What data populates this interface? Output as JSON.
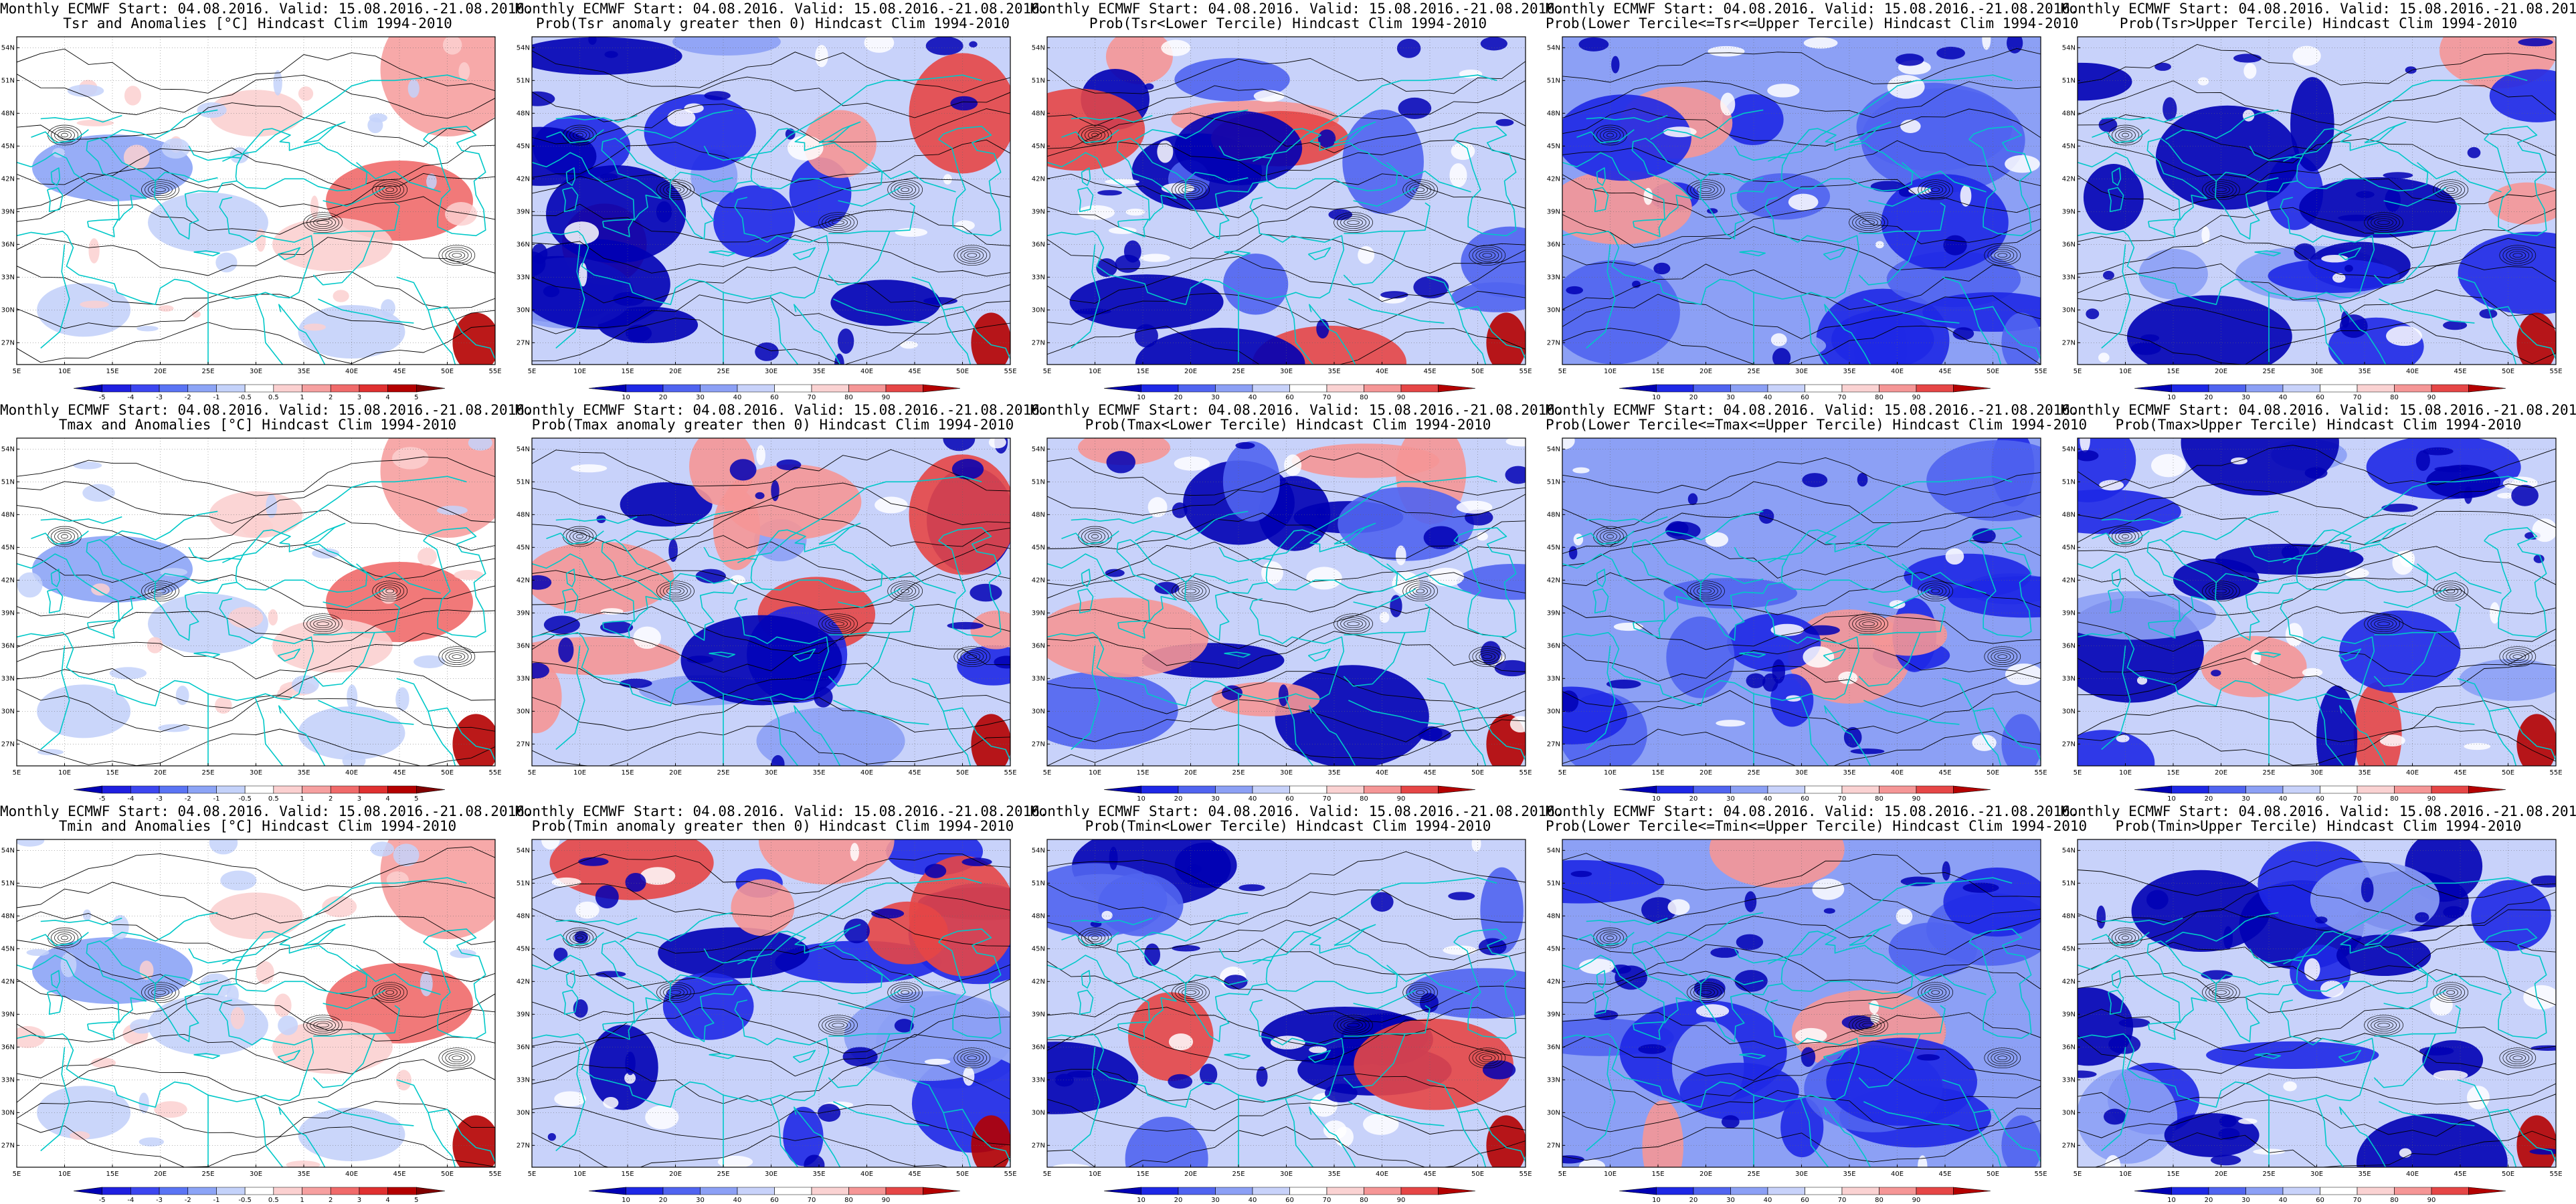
{
  "header": "Monthly ECMWF Start: 04.08.2016. Valid: 15.08.2016.-21.08.2016.",
  "lat_labels": [
    "54N",
    "51N",
    "48N",
    "45N",
    "42N",
    "39N",
    "36N",
    "33N",
    "30N",
    "27N"
  ],
  "lon_labels": [
    "5E",
    "10E",
    "15E",
    "20E",
    "25E",
    "30E",
    "35E",
    "40E",
    "45E",
    "50E",
    "55E"
  ],
  "colorbars": {
    "anomaly": {
      "labels": [
        "-5",
        "-4",
        "-3",
        "-2",
        "-1",
        "-0.5",
        "0.5",
        "1",
        "2",
        "3",
        "4",
        "5"
      ],
      "colors": [
        "#0000b4",
        "#1f1fe0",
        "#3c46f0",
        "#5a74f4",
        "#8ca4f6",
        "#c4d2fa",
        "#ffffff",
        "#fbd0d0",
        "#f6a0a0",
        "#f06a6a",
        "#e03030",
        "#b40000",
        "#800000"
      ]
    },
    "probability": {
      "labels": [
        "10",
        "20",
        "30",
        "40",
        "60",
        "70",
        "80",
        "90"
      ],
      "colors": [
        "#0000b4",
        "#1e28e6",
        "#5064f0",
        "#8ca0f5",
        "#c8d2fa",
        "#ffffff",
        "#fad2d2",
        "#f59696",
        "#e64646",
        "#b40000"
      ]
    }
  },
  "panels": [
    {
      "title": "Tsr and Anomalies [°C] Hindcast Clim 1994-2010",
      "kind": "anomaly",
      "colorbar": true
    },
    {
      "title": "Prob(Tsr anomaly greater then 0) Hindcast Clim 1994-2010",
      "kind": "probability",
      "colorbar": true
    },
    {
      "title": "Prob(Tsr<Lower Tercile) Hindcast Clim 1994-2010",
      "kind": "probability",
      "colorbar": true
    },
    {
      "title": "Prob(Lower Tercile<=Tsr<=Upper Tercile) Hindcast Clim 1994-2010",
      "kind": "probability",
      "colorbar": true
    },
    {
      "title": "Prob(Tsr>Upper Tercile) Hindcast Clim 1994-2010",
      "kind": "probability",
      "colorbar": true
    },
    {
      "title": "Tmax and Anomalies [°C] Hindcast Clim 1994-2010",
      "kind": "anomaly",
      "colorbar": true
    },
    {
      "title": "Prob(Tmax anomaly greater then 0) Hindcast Clim 1994-2010",
      "kind": "probability",
      "colorbar": false
    },
    {
      "title": "Prob(Tmax<Lower Tercile) Hindcast Clim 1994-2010",
      "kind": "probability",
      "colorbar": true
    },
    {
      "title": "Prob(Lower Tercile<=Tmax<=Upper Tercile) Hindcast Clim 1994-2010",
      "kind": "probability",
      "colorbar": true
    },
    {
      "title": "Prob(Tmax>Upper Tercile) Hindcast Clim 1994-2010",
      "kind": "probability",
      "colorbar": true
    },
    {
      "title": "Tmin and Anomalies [°C] Hindcast Clim 1994-2010",
      "kind": "anomaly",
      "colorbar": true
    },
    {
      "title": "Prob(Tmin anomaly greater then 0) Hindcast Clim 1994-2010",
      "kind": "probability",
      "colorbar": true
    },
    {
      "title": "Prob(Tmin<Lower Tercile) Hindcast Clim 1994-2010",
      "kind": "probability",
      "colorbar": true
    },
    {
      "title": "Prob(Lower Tercile<=Tmin<=Upper Tercile) Hindcast Clim 1994-2010",
      "kind": "probability",
      "colorbar": true
    },
    {
      "title": "Prob(Tmin>Upper Tercile) Hindcast Clim 1994-2010",
      "kind": "probability",
      "colorbar": true
    }
  ]
}
